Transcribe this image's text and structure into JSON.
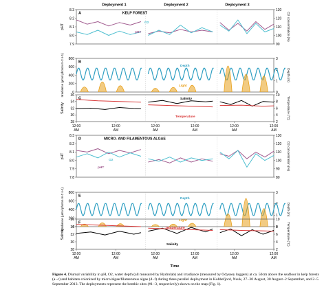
{
  "figure": {
    "deployments": [
      "Deployment 1",
      "Deployment 2",
      "Deployment 3"
    ],
    "xlabel": "Time",
    "x_ticks": [
      {
        "time": "12:00",
        "period": "AM"
      },
      {
        "time": "12:00",
        "period": "AM"
      },
      {
        "time": "12:00",
        "period": "AM"
      },
      {
        "time": "12:00",
        "period": "AM"
      },
      {
        "time": "12:00",
        "period": "AM"
      },
      {
        "time": "12:00",
        "period": "AM"
      },
      {
        "time": "12:00",
        "period": "AM"
      },
      {
        "time": "12:00",
        "period": "AM"
      },
      {
        "time": "12:00",
        "period": "AM"
      },
      {
        "time": "12:00",
        "period": "AM"
      },
      {
        "time": "12:00",
        "period": "AM"
      },
      {
        "time": "12:00",
        "period": "AM"
      }
    ],
    "colors": {
      "ph": "#a05a8e",
      "o2": "#4fbfd0",
      "depth": "#2f9fc2",
      "light": "#e8a11c",
      "salinity": "#000000",
      "temperature": "#d93a3a",
      "frame": "#555555"
    }
  },
  "caption": {
    "label": "Figure 4.",
    "text": "Diurnal variability in pH, O2, water depth (all measured by Hydrolab) and irradiance (measured by Odyssey loggers) at ca. 50cm above the seafloor in kelp forests (a−c) and habitats colonized by micro/algae/filamentous algae (d−f) during three parallel deployment in Kobbefjord, Nuuk, 27−30 August, 30 August−2 September, and 2−5 September 2013. The deployments represent the benthic sites (#1−3, respectively) shown on the map (Fig. 1)."
  },
  "chart_data": [
    {
      "type": "line",
      "panel": "A",
      "title": "KELP FOREST",
      "ylabel": "pHT",
      "ylim": [
        7.9,
        8.3
      ],
      "yticks": [
        "8.3",
        "8.2",
        "8.1",
        "8.0",
        "7.9"
      ],
      "y2label": "O2 concentration (%)",
      "y2lim": [
        90,
        130
      ],
      "y2ticks": [
        "130",
        "120",
        "110",
        "100",
        "90"
      ],
      "inline_labels": [
        "pHT",
        "O2"
      ],
      "series": [
        {
          "name": "pHT",
          "axis": "left",
          "segments": [
            {
              "x": [
                0,
                0.6,
                1.2,
                1.8,
                2.4,
                3.0,
                3.6
              ],
              "y": [
                8.18,
                8.13,
                8.16,
                8.11,
                8.15,
                8.12,
                8.16
              ]
            },
            {
              "x": [
                4.0,
                4.6,
                5.2,
                5.8,
                6.4,
                7.0,
                7.6
              ],
              "y": [
                8.02,
                8.05,
                8.03,
                8.07,
                8.04,
                8.06,
                8.04
              ]
            },
            {
              "x": [
                8.0,
                8.5,
                9.0,
                9.5,
                10.0,
                10.5,
                11.0
              ],
              "y": [
                8.15,
                8.06,
                8.14,
                8.05,
                8.16,
                8.07,
                8.13
              ]
            }
          ]
        },
        {
          "name": "O2",
          "axis": "right",
          "segments": [
            {
              "x": [
                0,
                0.6,
                1.2,
                1.8,
                2.4,
                3.0,
                3.6
              ],
              "y": [
                104,
                101,
                106,
                100,
                105,
                101,
                104
              ]
            },
            {
              "x": [
                4.0,
                4.6,
                5.2,
                5.8,
                6.4,
                7.0,
                7.6
              ],
              "y": [
                100,
                106,
                101,
                112,
                103,
                109,
                104
              ]
            },
            {
              "x": [
                8.0,
                8.5,
                9.0,
                9.5,
                10.0,
                10.5,
                11.0
              ],
              "y": [
                112,
                105,
                118,
                102,
                114,
                104,
                108
              ]
            }
          ]
        }
      ]
    },
    {
      "type": "line",
      "panel": "B",
      "ylabel": "Irradiance (μmol photon m-2 s-1)",
      "ylim": [
        0,
        800
      ],
      "yticks": [
        "800",
        "600",
        "400",
        "200",
        "0"
      ],
      "y2label": "Depth (m)",
      "y2lim": [
        0,
        3
      ],
      "y2ticks": [
        "3",
        "2",
        "1",
        "0"
      ],
      "inline_labels": [
        "Depth",
        "Light"
      ],
      "series": [
        {
          "name": "Depth",
          "axis": "right",
          "wave": {
            "mean": 1.6,
            "amp": 0.55,
            "period": 0.5
          }
        },
        {
          "name": "Light",
          "axis": "left",
          "peaks": [
            {
              "x": 0.45,
              "y": 120
            },
            {
              "x": 1.45,
              "y": 240
            },
            {
              "x": 2.45,
              "y": 150
            },
            {
              "x": 4.4,
              "y": 90
            },
            {
              "x": 5.4,
              "y": 110
            },
            {
              "x": 6.45,
              "y": 160
            },
            {
              "x": 8.45,
              "y": 620
            },
            {
              "x": 9.45,
              "y": 420
            },
            {
              "x": 10.45,
              "y": 380
            }
          ]
        }
      ]
    },
    {
      "type": "line",
      "panel": "C",
      "ylabel": "Salinity",
      "ylim": [
        28,
        36
      ],
      "yticks": [
        "36",
        "34",
        "32",
        "30",
        "28"
      ],
      "y2label": "Temperature (°C)",
      "y2lim": [
        2,
        10
      ],
      "y2ticks": [
        "10",
        "8",
        "6",
        "4",
        "2"
      ],
      "inline_labels": [
        "Salinity",
        "Temperature"
      ],
      "series": [
        {
          "name": "Salinity",
          "axis": "left",
          "segments": [
            {
              "x": [
                0,
                0.8,
                1.6,
                2.4,
                3.2,
                3.6
              ],
              "y": [
                31.8,
                32.0,
                31.6,
                32.2,
                31.9,
                31.8
              ]
            },
            {
              "x": [
                4.0,
                4.8,
                5.6,
                6.4,
                7.2,
                7.6
              ],
              "y": [
                33.8,
                34.3,
                33.4,
                34.2,
                33.9,
                34.1
              ]
            },
            {
              "x": [
                8.0,
                8.6,
                9.2,
                9.8,
                10.4,
                11.0
              ],
              "y": [
                33.9,
                33.1,
                34.3,
                32.6,
                34.0,
                33.8
              ]
            }
          ]
        },
        {
          "name": "Temperature",
          "axis": "right",
          "segments": [
            {
              "x": [
                0,
                1.2,
                2.4,
                3.6
              ],
              "y": [
                8.6,
                8.2,
                8.0,
                7.8
              ]
            },
            {
              "x": [
                4.0,
                5.2,
                6.4,
                7.6
              ],
              "y": [
                7.0,
                6.8,
                6.6,
                6.4
              ]
            },
            {
              "x": [
                8.0,
                9.2,
                10.4,
                11.0
              ],
              "y": [
                6.8,
                6.9,
                6.6,
                6.7
              ]
            }
          ]
        }
      ]
    },
    {
      "type": "line",
      "panel": "D",
      "title": "MICRO- AND FILAMENTOUS ALGAE",
      "ylabel": "pHT",
      "ylim": [
        7.8,
        8.3
      ],
      "yticks": [
        "8.3",
        "8.2",
        "8.1",
        "8.0",
        "7.9",
        "7.8"
      ],
      "y2label": "O2 concentration (%)",
      "y2lim": [
        80,
        130
      ],
      "y2ticks": [
        "130",
        "120",
        "110",
        "100",
        "90",
        "80"
      ],
      "inline_labels": [
        "pHT",
        "O2"
      ],
      "series": [
        {
          "name": "pHT",
          "axis": "left",
          "segments": [
            {
              "x": [
                0,
                0.6,
                1.2,
                1.8,
                2.4,
                3.0,
                3.6
              ],
              "y": [
                8.12,
                8.1,
                8.14,
                8.08,
                8.12,
                8.09,
                8.13
              ]
            },
            {
              "x": [
                4.0,
                4.6,
                5.2,
                5.8,
                6.4,
                7.0,
                7.6
              ],
              "y": [
                7.98,
                8.01,
                7.97,
                8.03,
                7.98,
                8.02,
                7.99
              ]
            },
            {
              "x": [
                8.0,
                8.5,
                9.0,
                9.5,
                10.0,
                10.5,
                11.0
              ],
              "y": [
                8.08,
                8.05,
                8.12,
                8.02,
                8.1,
                8.04,
                8.11
              ]
            }
          ]
        },
        {
          "name": "O2",
          "axis": "right",
          "segments": [
            {
              "x": [
                0,
                0.6,
                1.2,
                1.8,
                2.4,
                3.0,
                3.6
              ],
              "y": [
                104,
                108,
                103,
                110,
                104,
                109,
                105
              ]
            },
            {
              "x": [
                4.0,
                4.6,
                5.2,
                5.8,
                6.4,
                7.0,
                7.6
              ],
              "y": [
                102,
                99,
                104,
                98,
                103,
                100,
                102
              ]
            },
            {
              "x": [
                8.0,
                8.5,
                9.0,
                9.5,
                10.0,
                10.5,
                11.0
              ],
              "y": [
                110,
                102,
                112,
                92,
                108,
                100,
                106
              ]
            }
          ]
        }
      ]
    },
    {
      "type": "line",
      "panel": "E",
      "ylabel": "Irradiance (μmol photon m-2 s-1)",
      "ylim": [
        0,
        800
      ],
      "yticks": [
        "800",
        "600",
        "400",
        "200",
        "0"
      ],
      "y2label": "Depth (m)",
      "y2lim": [
        0,
        3
      ],
      "y2ticks": [
        "3",
        "2",
        "1",
        "0"
      ],
      "inline_labels": [
        "Depth",
        "Light"
      ],
      "series": [
        {
          "name": "Depth",
          "axis": "right",
          "wave": {
            "mean": 1.5,
            "amp": 0.55,
            "period": 0.5
          }
        },
        {
          "name": "Light",
          "axis": "left",
          "peaks": [
            {
              "x": 0.45,
              "y": 60
            },
            {
              "x": 1.45,
              "y": 90
            },
            {
              "x": 2.45,
              "y": 70
            },
            {
              "x": 4.4,
              "y": 50
            },
            {
              "x": 5.4,
              "y": 60
            },
            {
              "x": 6.45,
              "y": 80
            },
            {
              "x": 8.45,
              "y": 300
            },
            {
              "x": 9.45,
              "y": 660
            },
            {
              "x": 10.45,
              "y": 420
            }
          ]
        }
      ]
    },
    {
      "type": "line",
      "panel": "F",
      "ylabel": "Salinity",
      "ylim": [
        28,
        36
      ],
      "yticks": [
        "36",
        "34",
        "32",
        "30",
        "28"
      ],
      "y2label": "Temperature (°C)",
      "y2lim": [
        2,
        10
      ],
      "y2ticks": [
        "10",
        "8",
        "6",
        "4",
        "2"
      ],
      "inline_labels": [
        "Temperature",
        "Salinity"
      ],
      "series": [
        {
          "name": "Salinity",
          "axis": "left",
          "segments": [
            {
              "x": [
                0,
                0.8,
                1.6,
                2.4,
                3.2,
                3.6
              ],
              "y": [
                32.2,
                32.6,
                31.8,
                32.8,
                32.0,
                32.4
              ]
            },
            {
              "x": [
                4.0,
                4.8,
                5.6,
                6.4,
                7.2,
                7.6
              ],
              "y": [
                32.8,
                33.6,
                32.2,
                33.8,
                32.6,
                33.4
              ]
            },
            {
              "x": [
                8.0,
                8.6,
                9.2,
                9.8,
                10.4,
                11.0
              ],
              "y": [
                32.4,
                33.4,
                31.6,
                33.2,
                32.0,
                33.0
              ]
            }
          ]
        },
        {
          "name": "Temperature",
          "axis": "right",
          "segments": [
            {
              "x": [
                0,
                1.2,
                2.4,
                3.6
              ],
              "y": [
                8.6,
                8.4,
                8.2,
                8.0
              ]
            },
            {
              "x": [
                4.0,
                5.2,
                6.4,
                7.6
              ],
              "y": [
                7.6,
                7.4,
                7.2,
                7.0
              ]
            },
            {
              "x": [
                8.0,
                9.2,
                10.4,
                11.0
              ],
              "y": [
                7.2,
                7.0,
                6.9,
                6.8
              ]
            }
          ]
        }
      ]
    }
  ]
}
